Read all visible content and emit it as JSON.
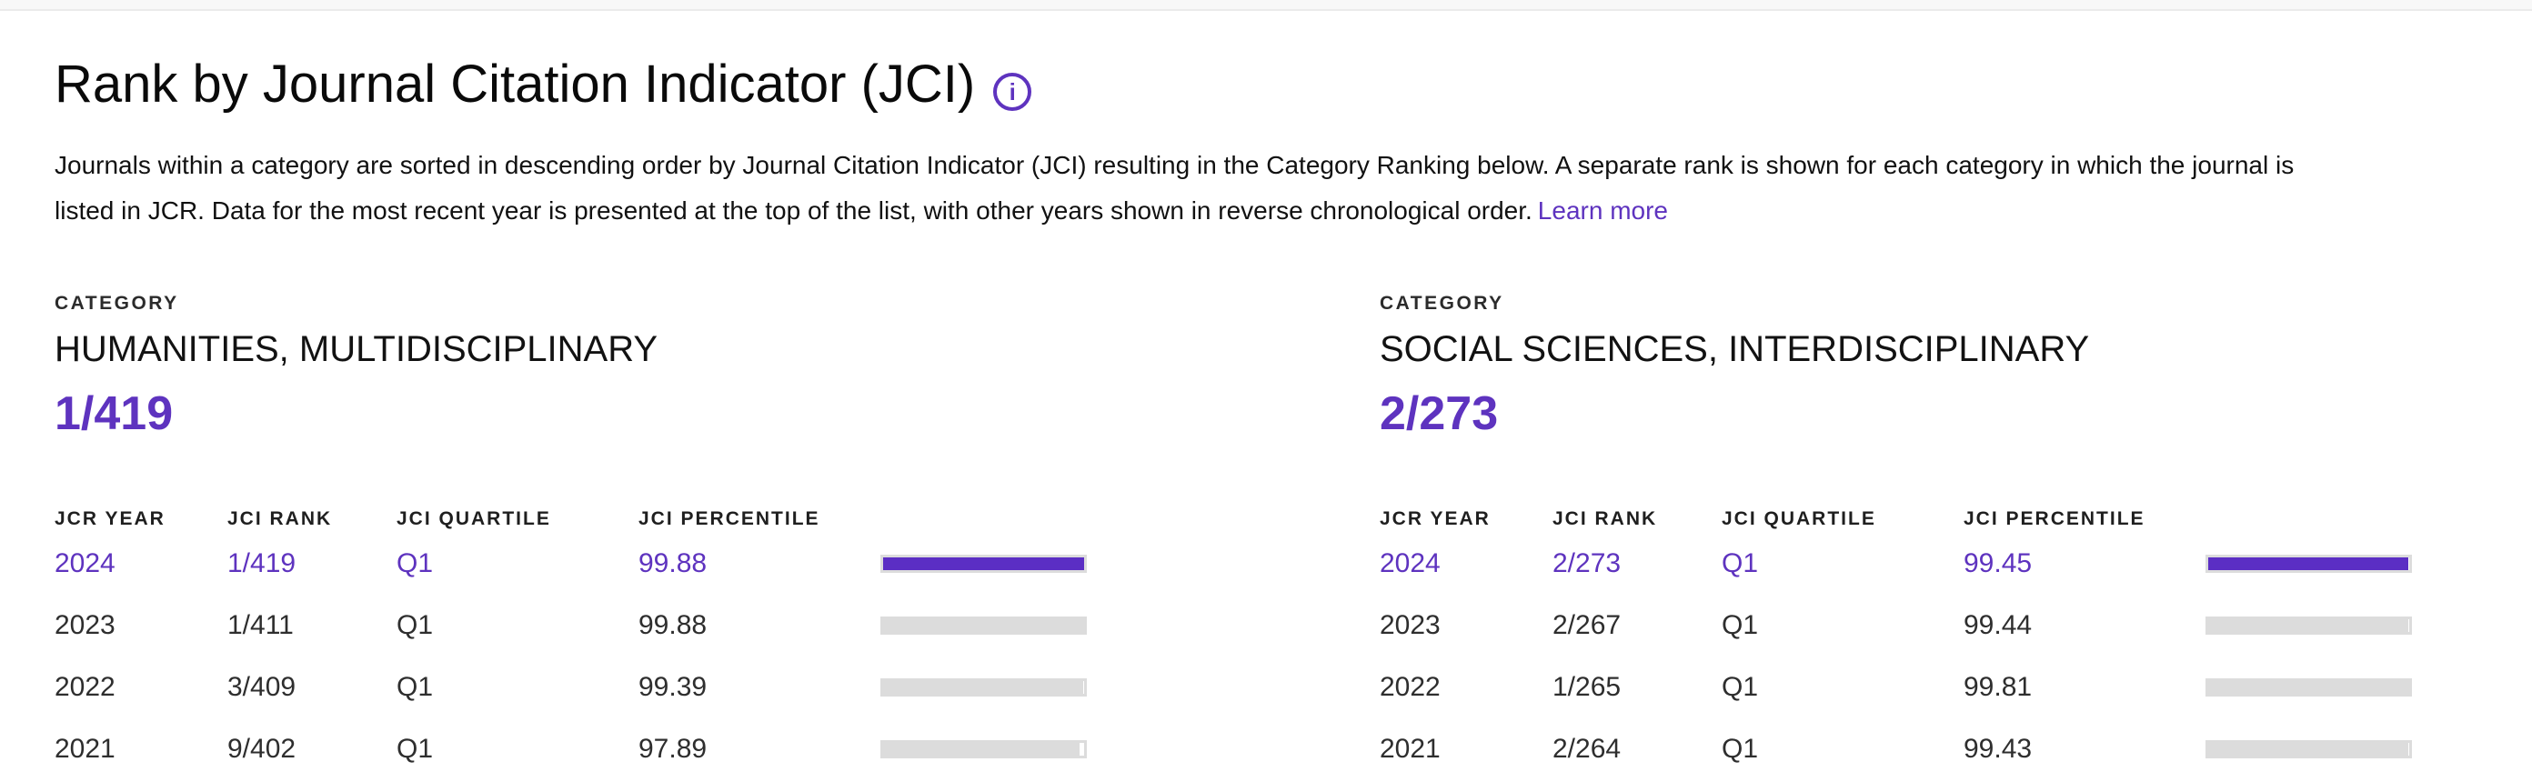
{
  "page": {
    "title": "Rank by Journal Citation Indicator (JCI)",
    "info_icon_glyph": "i",
    "description_line1": "Journals within a category are sorted in descending order by Journal Citation Indicator (JCI) resulting in the Category Ranking below. A separate rank is shown for each category in which the journal is",
    "description_line2": "listed in JCR. Data for the most recent year is presented at the top of the list, with other years shown in reverse chronological order.",
    "learn_more_label": "Learn more"
  },
  "colors": {
    "accent_purple": "#5E33BF",
    "bar_purple": "#5B2EC4",
    "bar_gray": "#DCDCDC",
    "top_strip_bg": "#f8f8f8"
  },
  "table_headers": [
    "JCR YEAR",
    "JCI RANK",
    "JCI QUARTILE",
    "JCI PERCENTILE"
  ],
  "categories": [
    {
      "label": "CATEGORY",
      "name": "HUMANITIES, MULTIDISCIPLINARY",
      "rank": "1/419",
      "rows": [
        {
          "year": "2024",
          "rank": "1/419",
          "quartile": "Q1",
          "percentile": "99.88",
          "highlight": true
        },
        {
          "year": "2023",
          "rank": "1/411",
          "quartile": "Q1",
          "percentile": "99.88",
          "highlight": false
        },
        {
          "year": "2022",
          "rank": "3/409",
          "quartile": "Q1",
          "percentile": "99.39",
          "highlight": false
        },
        {
          "year": "2021",
          "rank": "9/402",
          "quartile": "Q1",
          "percentile": "97.89",
          "highlight": false
        }
      ]
    },
    {
      "label": "CATEGORY",
      "name": "SOCIAL SCIENCES, INTERDISCIPLINARY",
      "rank": "2/273",
      "rows": [
        {
          "year": "2024",
          "rank": "2/273",
          "quartile": "Q1",
          "percentile": "99.45",
          "highlight": true
        },
        {
          "year": "2023",
          "rank": "2/267",
          "quartile": "Q1",
          "percentile": "99.44",
          "highlight": false
        },
        {
          "year": "2022",
          "rank": "1/265",
          "quartile": "Q1",
          "percentile": "99.81",
          "highlight": false
        },
        {
          "year": "2021",
          "rank": "2/264",
          "quartile": "Q1",
          "percentile": "99.43",
          "highlight": false
        }
      ]
    }
  ]
}
